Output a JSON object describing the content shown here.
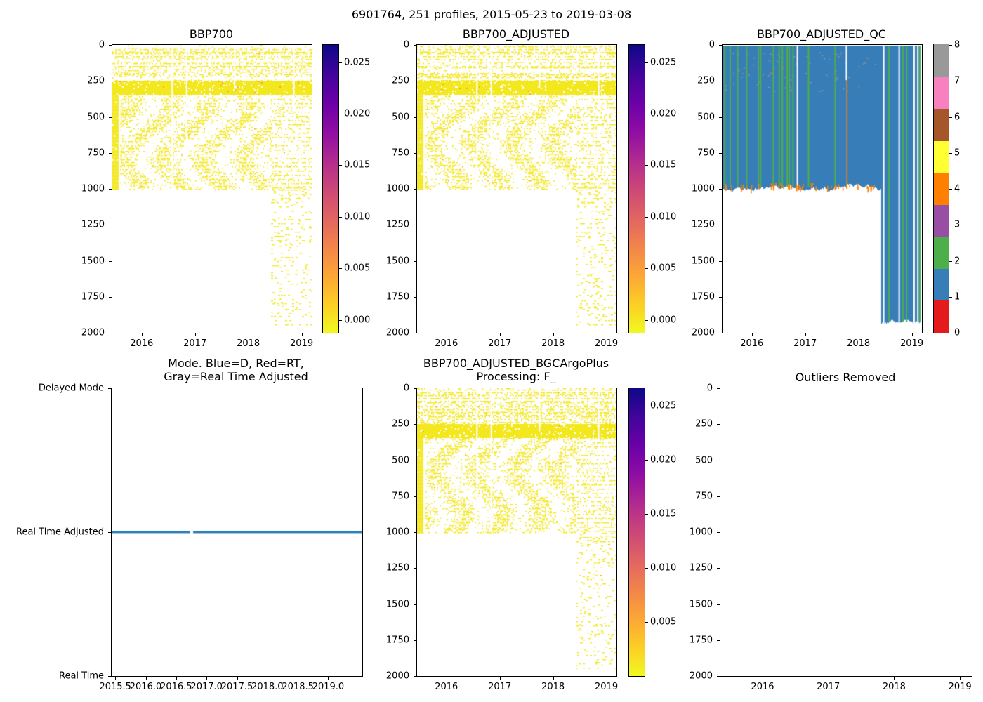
{
  "figure": {
    "suptitle": "6901764, 251 profiles, 2015-05-23 to 2019-03-08",
    "background": "#ffffff",
    "text_color": "#000000"
  },
  "palette": {
    "heat_yellow": "#f3e71e",
    "heat_orange": "#fca636",
    "qc_blue": "#377eb8",
    "qc_green": "#4daf4a",
    "qc_orange": "#ff7f00",
    "qc_gray": "#a39astray",
    "qc_gray_dot": "#a09288",
    "mode_line": "#1f77b4",
    "plasma_r_stops": [
      "#f0f921",
      "#fcce25",
      "#fca636",
      "#f2844b",
      "#e16462",
      "#cc4778",
      "#b12a90",
      "#8f0da4",
      "#6a00a8",
      "#41049d",
      "#0d0887"
    ],
    "set1": [
      "#e41a1c",
      "#377eb8",
      "#4daf4a",
      "#984ea3",
      "#ff7f00",
      "#ffff33",
      "#a65628",
      "#f781bf",
      "#999999"
    ]
  },
  "chart_data": [
    {
      "type": "heatmap",
      "title": "BBP700",
      "xlim": [
        2015.45,
        2019.19
      ],
      "depth_lim": [
        0,
        2000
      ],
      "xticks": {
        "values": [
          2016,
          2017,
          2018,
          2019
        ],
        "labels": [
          "2016",
          "2017",
          "2018",
          "2019"
        ]
      },
      "yticks": {
        "values": [
          0,
          250,
          500,
          750,
          1000,
          1250,
          1500,
          1750,
          2000
        ],
        "labels": [
          "0",
          "250",
          "500",
          "750",
          "1000",
          "1250",
          "1500",
          "1750",
          "2000"
        ]
      },
      "colorbar": {
        "kind": "plasma_r",
        "vmin": -0.00126,
        "vmax": 0.02668,
        "tick_values": [
          0,
          0.005,
          0.01,
          0.015,
          0.02,
          0.025
        ],
        "tick_labels": [
          "0.000",
          "0.005",
          "0.010",
          "0.015",
          "0.020",
          "0.025"
        ]
      },
      "paint": {
        "kind": "speckle",
        "seed": 7,
        "deep_start": 2018.42,
        "bands": [
          {
            "d0": 0,
            "d1": 250,
            "p": 0.5,
            "tex": "rows"
          },
          {
            "d0": 250,
            "d1": 345,
            "p": 0.93,
            "tex": "solid"
          },
          {
            "d0": 345,
            "d1": 1005,
            "p": 0.62,
            "tex": "wavy",
            "t1": 2018.42
          },
          {
            "d0": 345,
            "d1": 1005,
            "p": 0.3,
            "tex": "hrows",
            "t0": 2018.42
          },
          {
            "d0": 1005,
            "d1": 1950,
            "p": 0.085,
            "tex": "sparse",
            "t0": 2018.42
          }
        ],
        "solid_blocks": [
          {
            "t0": 2015.45,
            "t1": 2015.56,
            "d0": 345,
            "d1": 1005,
            "p": 0.96
          }
        ],
        "gaps": [
          {
            "t": 2015.58,
            "d0": 345,
            "d1": 1005
          },
          {
            "t": 2016.57,
            "d0": 0,
            "d1": 1000
          },
          {
            "t": 2016.84,
            "d0": 0,
            "d1": 1000
          },
          {
            "t": 2017.74,
            "d0": 0,
            "d1": 300
          },
          {
            "t": 2018.85,
            "d0": 0,
            "d1": 350
          }
        ]
      }
    },
    {
      "type": "heatmap",
      "title": "BBP700_ADJUSTED",
      "xlim": [
        2015.45,
        2019.19
      ],
      "depth_lim": [
        0,
        2000
      ],
      "xticks": {
        "values": [
          2016,
          2017,
          2018,
          2019
        ],
        "labels": [
          "2016",
          "2017",
          "2018",
          "2019"
        ]
      },
      "yticks": {
        "values": [
          0,
          250,
          500,
          750,
          1000,
          1250,
          1500,
          1750,
          2000
        ],
        "labels": [
          "0",
          "250",
          "500",
          "750",
          "1000",
          "1250",
          "1500",
          "1750",
          "2000"
        ]
      },
      "colorbar": {
        "kind": "plasma_r",
        "vmin": -0.00126,
        "vmax": 0.02668,
        "tick_values": [
          0,
          0.005,
          0.01,
          0.015,
          0.02,
          0.025
        ],
        "tick_labels": [
          "0.000",
          "0.005",
          "0.010",
          "0.015",
          "0.020",
          "0.025"
        ]
      },
      "paint": {
        "kind": "speckle",
        "seed": 8,
        "deep_start": 2018.42,
        "bands": [
          {
            "d0": 0,
            "d1": 250,
            "p": 0.5,
            "tex": "rows"
          },
          {
            "d0": 250,
            "d1": 345,
            "p": 0.93,
            "tex": "solid"
          },
          {
            "d0": 345,
            "d1": 1005,
            "p": 0.62,
            "tex": "wavy",
            "t1": 2018.42
          },
          {
            "d0": 345,
            "d1": 1005,
            "p": 0.3,
            "tex": "hrows",
            "t0": 2018.42
          },
          {
            "d0": 1005,
            "d1": 1950,
            "p": 0.085,
            "tex": "sparse",
            "t0": 2018.42
          }
        ],
        "solid_blocks": [
          {
            "t0": 2015.45,
            "t1": 2015.56,
            "d0": 345,
            "d1": 1005,
            "p": 0.96
          }
        ],
        "gaps": [
          {
            "t": 2015.58,
            "d0": 345,
            "d1": 1005
          },
          {
            "t": 2016.57,
            "d0": 0,
            "d1": 1000
          },
          {
            "t": 2016.84,
            "d0": 0,
            "d1": 1000
          },
          {
            "t": 2017.74,
            "d0": 0,
            "d1": 300
          },
          {
            "t": 2018.85,
            "d0": 0,
            "d1": 350
          }
        ]
      }
    },
    {
      "type": "heatmap",
      "title": "BBP700_ADJUSTED_QC",
      "xlim": [
        2015.45,
        2019.19
      ],
      "depth_lim": [
        0,
        2000
      ],
      "xticks": {
        "values": [
          2016,
          2017,
          2018,
          2019
        ],
        "labels": [
          "2016",
          "2017",
          "2018",
          "2019"
        ]
      },
      "yticks": {
        "values": [
          0,
          250,
          500,
          750,
          1000,
          1250,
          1500,
          1750,
          2000
        ],
        "labels": [
          "0",
          "250",
          "500",
          "750",
          "1000",
          "1250",
          "1500",
          "1750",
          "2000"
        ]
      },
      "colorbar": {
        "kind": "discrete9",
        "vmin": 0,
        "vmax": 8,
        "tick_values": [
          0,
          1,
          2,
          3,
          4,
          5,
          6,
          7,
          8
        ],
        "tick_labels": [
          "0",
          "1",
          "2",
          "3",
          "4",
          "5",
          "6",
          "7",
          "8"
        ]
      },
      "qc_legend": {
        "dominant_flag": 1,
        "flag_colors_note": "Set1 9-color scale, QC 0-8"
      },
      "paint": {
        "kind": "qc",
        "seed": 11,
        "shallow": {
          "t0": 2015.45,
          "t1": 2018.42,
          "d0": 5,
          "d1": 1000
        },
        "deep": {
          "t0": 2018.42,
          "t1": 2019.17,
          "d0": 5,
          "d1": 1945
        },
        "green_times": [
          2015.48,
          2015.58,
          2015.72,
          2015.89,
          2016.11,
          2016.15,
          2016.39,
          2016.5,
          2016.56,
          2016.65,
          2016.69,
          2016.76,
          2017.05,
          2017.55,
          2018.56,
          2018.82,
          2018.89,
          2019.14
        ],
        "white_gaps": [
          {
            "t": 2016.85,
            "d0": 0,
            "d1": 1010
          },
          {
            "t": 2017.77,
            "d0": 0,
            "d1": 245
          },
          {
            "t": 2018.47,
            "d0": 0,
            "d1": 2000
          },
          {
            "t": 2018.76,
            "d0": 0,
            "d1": 2000
          },
          {
            "t": 2019.04,
            "d0": 0,
            "d1": 2000
          },
          {
            "t": 2019.11,
            "d0": 0,
            "d1": 2000
          }
        ],
        "orange_stripe": {
          "t": 2017.78,
          "d0": 245,
          "d1": 1000
        },
        "gray_dots": {
          "count": 90,
          "t0": 2015.45,
          "t1": 2018.42,
          "d0": 50,
          "d1": 330
        },
        "orange_fringe": {
          "count": 50,
          "d_band": 80
        }
      }
    },
    {
      "type": "line",
      "title": "Mode. Blue=D, Red=RT,\nGray=Real Time Adjusted",
      "xlim": [
        2015.44,
        2019.56
      ],
      "categories": [
        "Real Time",
        "Real Time Adjusted",
        "Delayed Mode"
      ],
      "xticks": {
        "values": [
          2015.5,
          2016.0,
          2016.5,
          2017.0,
          2017.5,
          2018.0,
          2018.5,
          2019.0
        ],
        "labels": [
          "2015.5",
          "2016.0",
          "2016.5",
          "2017.0",
          "2017.5",
          "2018.0",
          "2018.5",
          "2019.0"
        ]
      },
      "yticks": {
        "fracs": [
          0,
          0.5,
          1
        ],
        "labels": [
          "Delayed Mode",
          "Real Time Adjusted",
          "Real Time"
        ]
      },
      "series": [
        {
          "name": "mode",
          "value": "Real Time Adjusted",
          "t0": 2015.44,
          "t1": 2019.56,
          "gaps": [
            [
              2016.73,
              2016.78
            ]
          ]
        }
      ]
    },
    {
      "type": "heatmap",
      "title": "BBP700_ADJUSTED_BGCArgoPlus\nProcessing: F_",
      "xlim": [
        2015.45,
        2019.19
      ],
      "depth_lim": [
        0,
        2000
      ],
      "xticks": {
        "values": [
          2016,
          2017,
          2018,
          2019
        ],
        "labels": [
          "2016",
          "2017",
          "2018",
          "2019"
        ]
      },
      "yticks": {
        "values": [
          0,
          250,
          500,
          750,
          1000,
          1250,
          1500,
          1750,
          2000
        ],
        "labels": [
          "0",
          "250",
          "500",
          "750",
          "1000",
          "1250",
          "1500",
          "1750",
          "2000"
        ]
      },
      "colorbar": {
        "kind": "plasma_r",
        "vmin": 0,
        "vmax": 0.0266,
        "tick_values": [
          0.005,
          0.01,
          0.015,
          0.02,
          0.025
        ],
        "tick_labels": [
          "0.005",
          "0.010",
          "0.015",
          "0.020",
          "0.025"
        ]
      },
      "paint": {
        "kind": "speckle",
        "seed": 9,
        "deep_start": 2018.42,
        "bands": [
          {
            "d0": 0,
            "d1": 250,
            "p": 0.5,
            "tex": "rows"
          },
          {
            "d0": 250,
            "d1": 345,
            "p": 0.93,
            "tex": "solid"
          },
          {
            "d0": 345,
            "d1": 1005,
            "p": 0.62,
            "tex": "wavy",
            "t1": 2018.42
          },
          {
            "d0": 345,
            "d1": 1005,
            "p": 0.3,
            "tex": "hrows",
            "t0": 2018.42
          },
          {
            "d0": 1005,
            "d1": 1950,
            "p": 0.085,
            "tex": "sparse",
            "t0": 2018.42
          }
        ],
        "solid_blocks": [
          {
            "t0": 2015.45,
            "t1": 2015.56,
            "d0": 345,
            "d1": 1005,
            "p": 0.96
          }
        ],
        "gaps": [
          {
            "t": 2015.58,
            "d0": 345,
            "d1": 1005
          },
          {
            "t": 2016.57,
            "d0": 0,
            "d1": 1000
          },
          {
            "t": 2016.84,
            "d0": 0,
            "d1": 1000
          },
          {
            "t": 2017.74,
            "d0": 0,
            "d1": 300
          },
          {
            "t": 2018.85,
            "d0": 0,
            "d1": 350
          }
        ]
      }
    },
    {
      "type": "empty",
      "title": "Outliers Removed",
      "xlim": [
        2015.36,
        2019.18
      ],
      "depth_lim": [
        0,
        2000
      ],
      "xticks": {
        "values": [
          2016,
          2017,
          2018,
          2019
        ],
        "labels": [
          "2016",
          "2017",
          "2018",
          "2019"
        ]
      },
      "yticks": {
        "values": [
          0,
          250,
          500,
          750,
          1000,
          1250,
          1500,
          1750,
          2000
        ],
        "labels": [
          "0",
          "250",
          "500",
          "750",
          "1000",
          "1250",
          "1500",
          "1750",
          "2000"
        ]
      }
    }
  ]
}
